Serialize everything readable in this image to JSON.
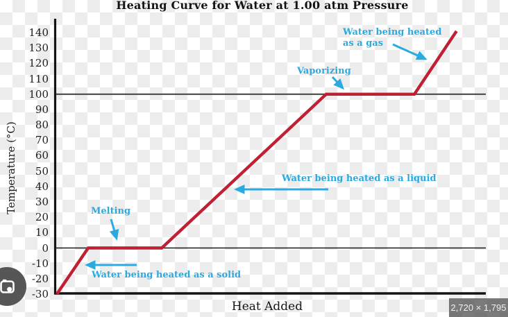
{
  "chart": {
    "title": "Heating Curve for Water at 1.00 atm Pressure",
    "y_axis_title": "Temperature (°C)",
    "x_axis_title": "Heat Added",
    "annotations": {
      "gas_line1": "Water being heated",
      "gas_line2": "as a gas",
      "vaporizing": "Vaporizing",
      "liquid": "Water being heated as a liquid",
      "melting": "Melting",
      "solid": "Water being heated as a solid"
    }
  },
  "overlay": {
    "size_badge": "2,720 × 1,795",
    "lens_icon": "google-lens-icon"
  },
  "colors": {
    "curve_red": "#bf2033",
    "annotation_cyan": "#29abe2",
    "axis_black": "#141414",
    "ref_line_100": "#4a4a4a",
    "ref_line_0": "#181818",
    "badge_bg": "#555555",
    "badge_text": "#f2f2f2",
    "lens_circle": "#565656"
  },
  "chart_data": {
    "type": "line",
    "title": "Heating Curve for Water at 1.00 atm Pressure",
    "xlabel": "Heat Added",
    "ylabel": "Temperature (°C)",
    "ylim": [
      -30,
      145
    ],
    "x_axis_unitless": true,
    "grid": false,
    "y_ticks": [
      140,
      130,
      120,
      110,
      100,
      90,
      80,
      70,
      60,
      50,
      40,
      30,
      20,
      10,
      0,
      -10,
      -20,
      -30
    ],
    "reference_lines": [
      {
        "temp": 100,
        "color": "#4a4a4a",
        "width": 2.2
      },
      {
        "temp": 0,
        "color": "#181818",
        "width": 1.6
      }
    ],
    "series": [
      {
        "name": "Heating curve of water",
        "color": "#bf2033",
        "x_is_fraction_of_axis": true,
        "points": [
          {
            "x": 0.003,
            "t": -30
          },
          {
            "x": 0.076,
            "t": 0
          },
          {
            "x": 0.247,
            "t": 0
          },
          {
            "x": 0.629,
            "t": 100
          },
          {
            "x": 0.834,
            "t": 100
          },
          {
            "x": 0.932,
            "t": 141
          }
        ]
      }
    ],
    "segment_labels": [
      {
        "text": "Water being heated as a solid",
        "segment": "solid warming -30°C to 0°C"
      },
      {
        "text": "Melting",
        "segment": "plateau at 0°C"
      },
      {
        "text": "Water being heated as a liquid",
        "segment": "liquid warming 0°C to 100°C"
      },
      {
        "text": "Vaporizing",
        "segment": "plateau at 100°C"
      },
      {
        "text": "Water being heated as a gas",
        "segment": "gas warming above 100°C"
      }
    ]
  }
}
